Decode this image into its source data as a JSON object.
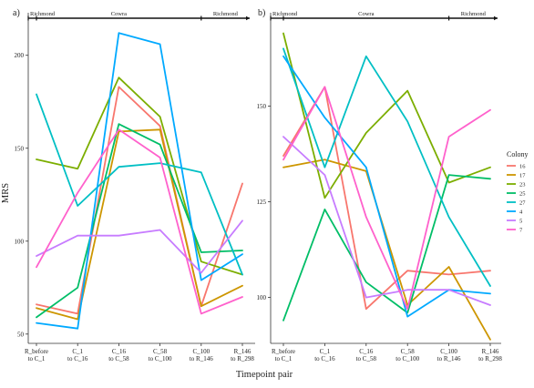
{
  "xlabel": "Timepoint pair",
  "ylabel": "MRS",
  "legend": {
    "title": "Colony",
    "placement": "right",
    "entries": [
      {
        "name": "16",
        "color": "#F8766D"
      },
      {
        "name": "17",
        "color": "#CD9600"
      },
      {
        "name": "23",
        "color": "#7CAE00"
      },
      {
        "name": "25",
        "color": "#00BE67"
      },
      {
        "name": "27",
        "color": "#00BFC4"
      },
      {
        "name": "4",
        "color": "#00A9FF"
      },
      {
        "name": "5",
        "color": "#C77CFF"
      },
      {
        "name": "7",
        "color": "#FF61CC"
      }
    ]
  },
  "chart_data": [
    {
      "type": "line",
      "panel_label": "a)",
      "categories": [
        "R_before\nto C_1",
        "C_1\nto C_16",
        "C_16\nto C_58",
        "C_58\nto C_100",
        "C_100\nto R_146",
        "R_146\nto R_298"
      ],
      "periods": [
        {
          "label": "Richmond",
          "from": 0,
          "to": 0
        },
        {
          "label": "Cowra",
          "from": 0,
          "to": 4
        },
        {
          "label": "Richmond",
          "from": 4,
          "to": 5
        }
      ],
      "ylim": [
        45,
        218
      ],
      "yticks": [
        50,
        100,
        150,
        200
      ],
      "grid": false,
      "series": [
        {
          "name": "16",
          "values": [
            66,
            61,
            183,
            162,
            65,
            131
          ]
        },
        {
          "name": "17",
          "values": [
            64,
            58,
            159,
            160,
            65,
            76
          ]
        },
        {
          "name": "23",
          "values": [
            144,
            139,
            188,
            167,
            89,
            82
          ]
        },
        {
          "name": "25",
          "values": [
            59,
            75,
            163,
            152,
            94,
            95
          ]
        },
        {
          "name": "27",
          "values": [
            179,
            119,
            140,
            142,
            137,
            82
          ]
        },
        {
          "name": "4",
          "values": [
            56,
            53,
            212,
            206,
            79,
            93
          ]
        },
        {
          "name": "5",
          "values": [
            92,
            103,
            103,
            106,
            83,
            111
          ]
        },
        {
          "name": "7",
          "values": [
            86,
            126,
            160,
            145,
            61,
            70
          ]
        }
      ]
    },
    {
      "type": "line",
      "panel_label": "b)",
      "categories": [
        "R_before\nto C_1",
        "C_1\nto C_16",
        "C_16\nto C_58",
        "C_58\nto C_100",
        "C_100\nto R_146",
        "R_146\nto R_298"
      ],
      "periods": [
        {
          "label": "Richmond",
          "from": 0,
          "to": 0
        },
        {
          "label": "Cowra",
          "from": 0,
          "to": 4
        },
        {
          "label": "Richmond",
          "from": 4,
          "to": 5
        }
      ],
      "ylim": [
        88,
        172
      ],
      "yticks": [
        100,
        125,
        150
      ],
      "grid": false,
      "series": [
        {
          "name": "16",
          "values": [
            137,
            155,
            97,
            107,
            106,
            107
          ]
        },
        {
          "name": "17",
          "values": [
            134,
            136,
            133,
            98,
            108,
            89
          ]
        },
        {
          "name": "23",
          "values": [
            169,
            126,
            143,
            154,
            130,
            134
          ]
        },
        {
          "name": "25",
          "values": [
            94,
            123,
            104,
            96,
            132,
            131
          ]
        },
        {
          "name": "27",
          "values": [
            165,
            134,
            163,
            146,
            121,
            103
          ]
        },
        {
          "name": "4",
          "values": [
            163,
            147,
            134,
            95,
            102,
            101
          ]
        },
        {
          "name": "5",
          "values": [
            142,
            132,
            100,
            102,
            102,
            98
          ]
        },
        {
          "name": "7",
          "values": [
            136,
            155,
            121,
            97,
            142,
            149
          ]
        }
      ]
    }
  ]
}
